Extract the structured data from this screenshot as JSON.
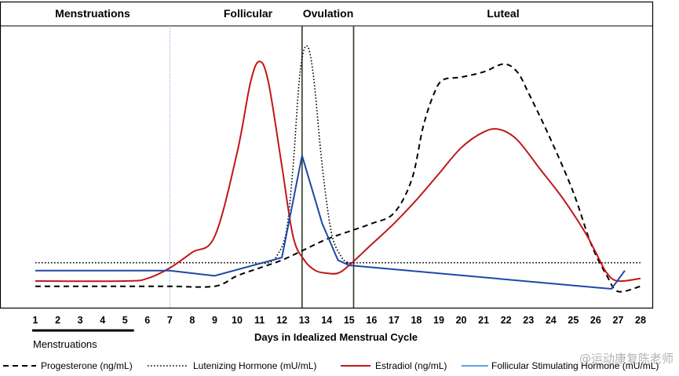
{
  "chart_data": {
    "type": "line",
    "xlabel": "Days in Idealized Menstrual Cycle",
    "x_ticks": [
      1,
      2,
      3,
      4,
      5,
      6,
      7,
      8,
      9,
      10,
      11,
      12,
      13,
      14,
      15,
      16,
      17,
      18,
      19,
      20,
      21,
      22,
      23,
      24,
      25,
      26,
      27,
      28
    ],
    "xlim": [
      1,
      28
    ],
    "ylim": [
      0,
      100
    ],
    "phases": [
      {
        "name": "Menstruations",
        "center_day": 3.6
      },
      {
        "name": "Follicular",
        "center_day": 10.5
      },
      {
        "name": "Ovulation",
        "center_day": 14.3
      },
      {
        "name": "Luteal",
        "center_day": 21.9
      }
    ],
    "menstruation_bar": {
      "label": "Menstruations",
      "start_day": 1,
      "end_day": 5.4
    },
    "vertical_markers": [
      {
        "day": 7,
        "style": "dotted-blue"
      },
      {
        "day": 12.9,
        "style": "solid"
      },
      {
        "day": 15.2,
        "style": "solid"
      }
    ],
    "series": [
      {
        "name": "Progesterone (ng/mL)",
        "style": "dashed",
        "color": "#000000",
        "x": [
          1,
          5,
          7,
          9,
          10,
          11,
          12,
          13,
          14,
          15,
          16,
          17,
          17.8,
          18.3,
          18.8,
          19.2,
          20,
          21,
          21.9,
          22.5,
          23,
          24,
          25,
          25.8,
          26.5,
          27,
          28
        ],
        "y": [
          4,
          4,
          4,
          4,
          8,
          11,
          14,
          18,
          22,
          25,
          28,
          32,
          45,
          65,
          78,
          83,
          84,
          86,
          89,
          86,
          78,
          60,
          40,
          20,
          8,
          2,
          4
        ]
      },
      {
        "name": "Lutenizing Hormone (mU/mL)",
        "style": "dotted",
        "color": "#000000",
        "x": [
          1,
          9,
          10.5,
          11.4,
          11.8,
          12.2,
          12.5,
          12.8,
          13.1,
          13.4,
          13.8,
          14.2,
          14.6,
          15,
          16,
          28
        ],
        "y": [
          13,
          13,
          13,
          13,
          16,
          25,
          50,
          85,
          96,
          85,
          50,
          25,
          16,
          13,
          13,
          13
        ]
      },
      {
        "name": "Estradiol (ng/mL)",
        "style": "solid",
        "color": "#c0171b",
        "x": [
          1,
          5,
          6,
          7,
          8,
          9,
          10,
          10.6,
          11,
          11.4,
          12,
          12.5,
          13,
          13.5,
          14,
          14.5,
          15,
          16,
          17,
          18,
          19,
          20,
          21,
          21.7,
          22.5,
          23.5,
          24.5,
          25.5,
          26,
          26.5,
          27,
          28
        ],
        "y": [
          6,
          6,
          7,
          11,
          17,
          23,
          55,
          82,
          90,
          82,
          50,
          23,
          14,
          10,
          9,
          9,
          12,
          20,
          28,
          37,
          47,
          57,
          63,
          64,
          60,
          49,
          38,
          25,
          17,
          9,
          6,
          7
        ]
      },
      {
        "name": "Follicular Stimulating Hormone (mU/mL)",
        "style": "solid",
        "color": "#1f47a6",
        "x": [
          1,
          7,
          9,
          12,
          12.9,
          13.8,
          14.5,
          15,
          26.7,
          27.3
        ],
        "y": [
          10,
          10,
          8,
          15,
          54,
          28,
          14,
          12,
          3,
          10
        ]
      }
    ],
    "legend_position": "bottom"
  },
  "watermark": "@运动康复陈老师"
}
